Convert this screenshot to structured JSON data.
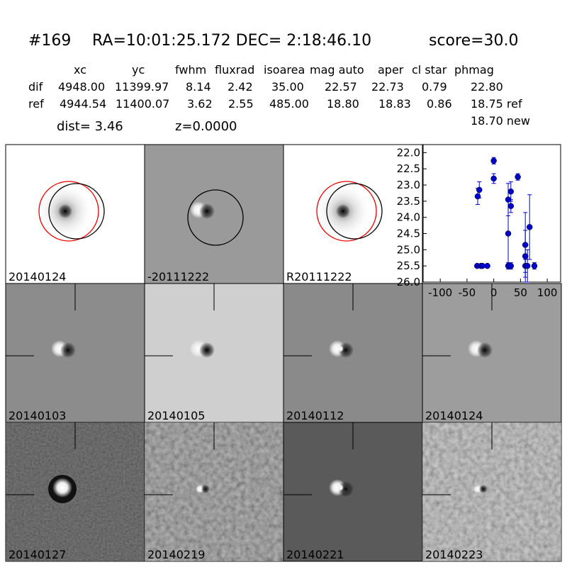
{
  "header": {
    "id": "#169",
    "coords": "RA=10:01:25.172 DEC= 2:18:46.10",
    "score": "score=30.0"
  },
  "table": {
    "columns": [
      "xc",
      "yc",
      "fwhm",
      "fluxrad",
      "isoarea",
      "mag auto",
      "aper",
      "cl star",
      "phmag"
    ],
    "rows": [
      [
        "dif",
        "4948.00",
        "11399.97",
        "8.14",
        "2.42",
        "35.00",
        "22.57",
        "22.73",
        "0.79",
        "22.80"
      ],
      [
        "ref",
        "4944.54",
        "11400.07",
        "3.62",
        "2.55",
        "485.00",
        "18.80",
        "18.83",
        "0.86",
        "18.75 ref"
      ]
    ],
    "extra": "18.70 new",
    "dist": "dist=  3.46",
    "z": "z=0.0000"
  },
  "stamps": [
    {
      "label": "20140124"
    },
    {
      "label": "-20111222"
    },
    {
      "label": "R20111222"
    },
    {
      "label": "20140103"
    },
    {
      "label": "20140105"
    },
    {
      "label": "20140112"
    },
    {
      "label": "20140124",
      "label_color": "#ff0000"
    },
    {
      "label": "20140127"
    },
    {
      "label": "20140219"
    },
    {
      "label": "20140221"
    },
    {
      "label": "20140223"
    }
  ],
  "chart_data": {
    "type": "scatter",
    "color": "#0000cc",
    "y_inverted": true,
    "x": [
      -30,
      -27,
      -31,
      -24,
      -21,
      -12,
      0,
      0,
      27,
      27,
      27,
      32,
      32,
      32,
      45,
      59,
      59,
      59,
      63,
      67,
      76
    ],
    "series": [
      {
        "values": [
          23.35,
          23.15,
          25.5,
          25.5,
          25.5,
          25.5,
          22.25,
          22.8,
          23.45,
          24.5,
          25.5,
          23.2,
          23.65,
          25.5,
          22.75,
          24.85,
          25.2,
          25.5,
          25.5,
          24.3,
          25.5
        ],
        "errors": [
          0.25,
          0.25,
          0,
          0,
          0,
          0,
          0.1,
          0.15,
          0.5,
          1.0,
          0.1,
          0.3,
          0.2,
          0.1,
          0.1,
          1.0,
          0.8,
          0.2,
          0.5,
          1.0,
          0.1
        ]
      }
    ],
    "xlim": [
      -132,
      125
    ],
    "xticks": [
      -100,
      -50,
      0,
      50,
      100
    ],
    "ylim": [
      21.75,
      26
    ],
    "yticks": [
      {
        "value": 22,
        "label": "22.0"
      },
      22.5,
      {
        "value": 23,
        "label": "23.0"
      },
      23.5,
      {
        "value": 24,
        "label": "24.0"
      },
      24.5,
      {
        "value": 25,
        "label": "25.0"
      },
      25.5,
      {
        "value": 26,
        "label": "26.0"
      }
    ]
  }
}
